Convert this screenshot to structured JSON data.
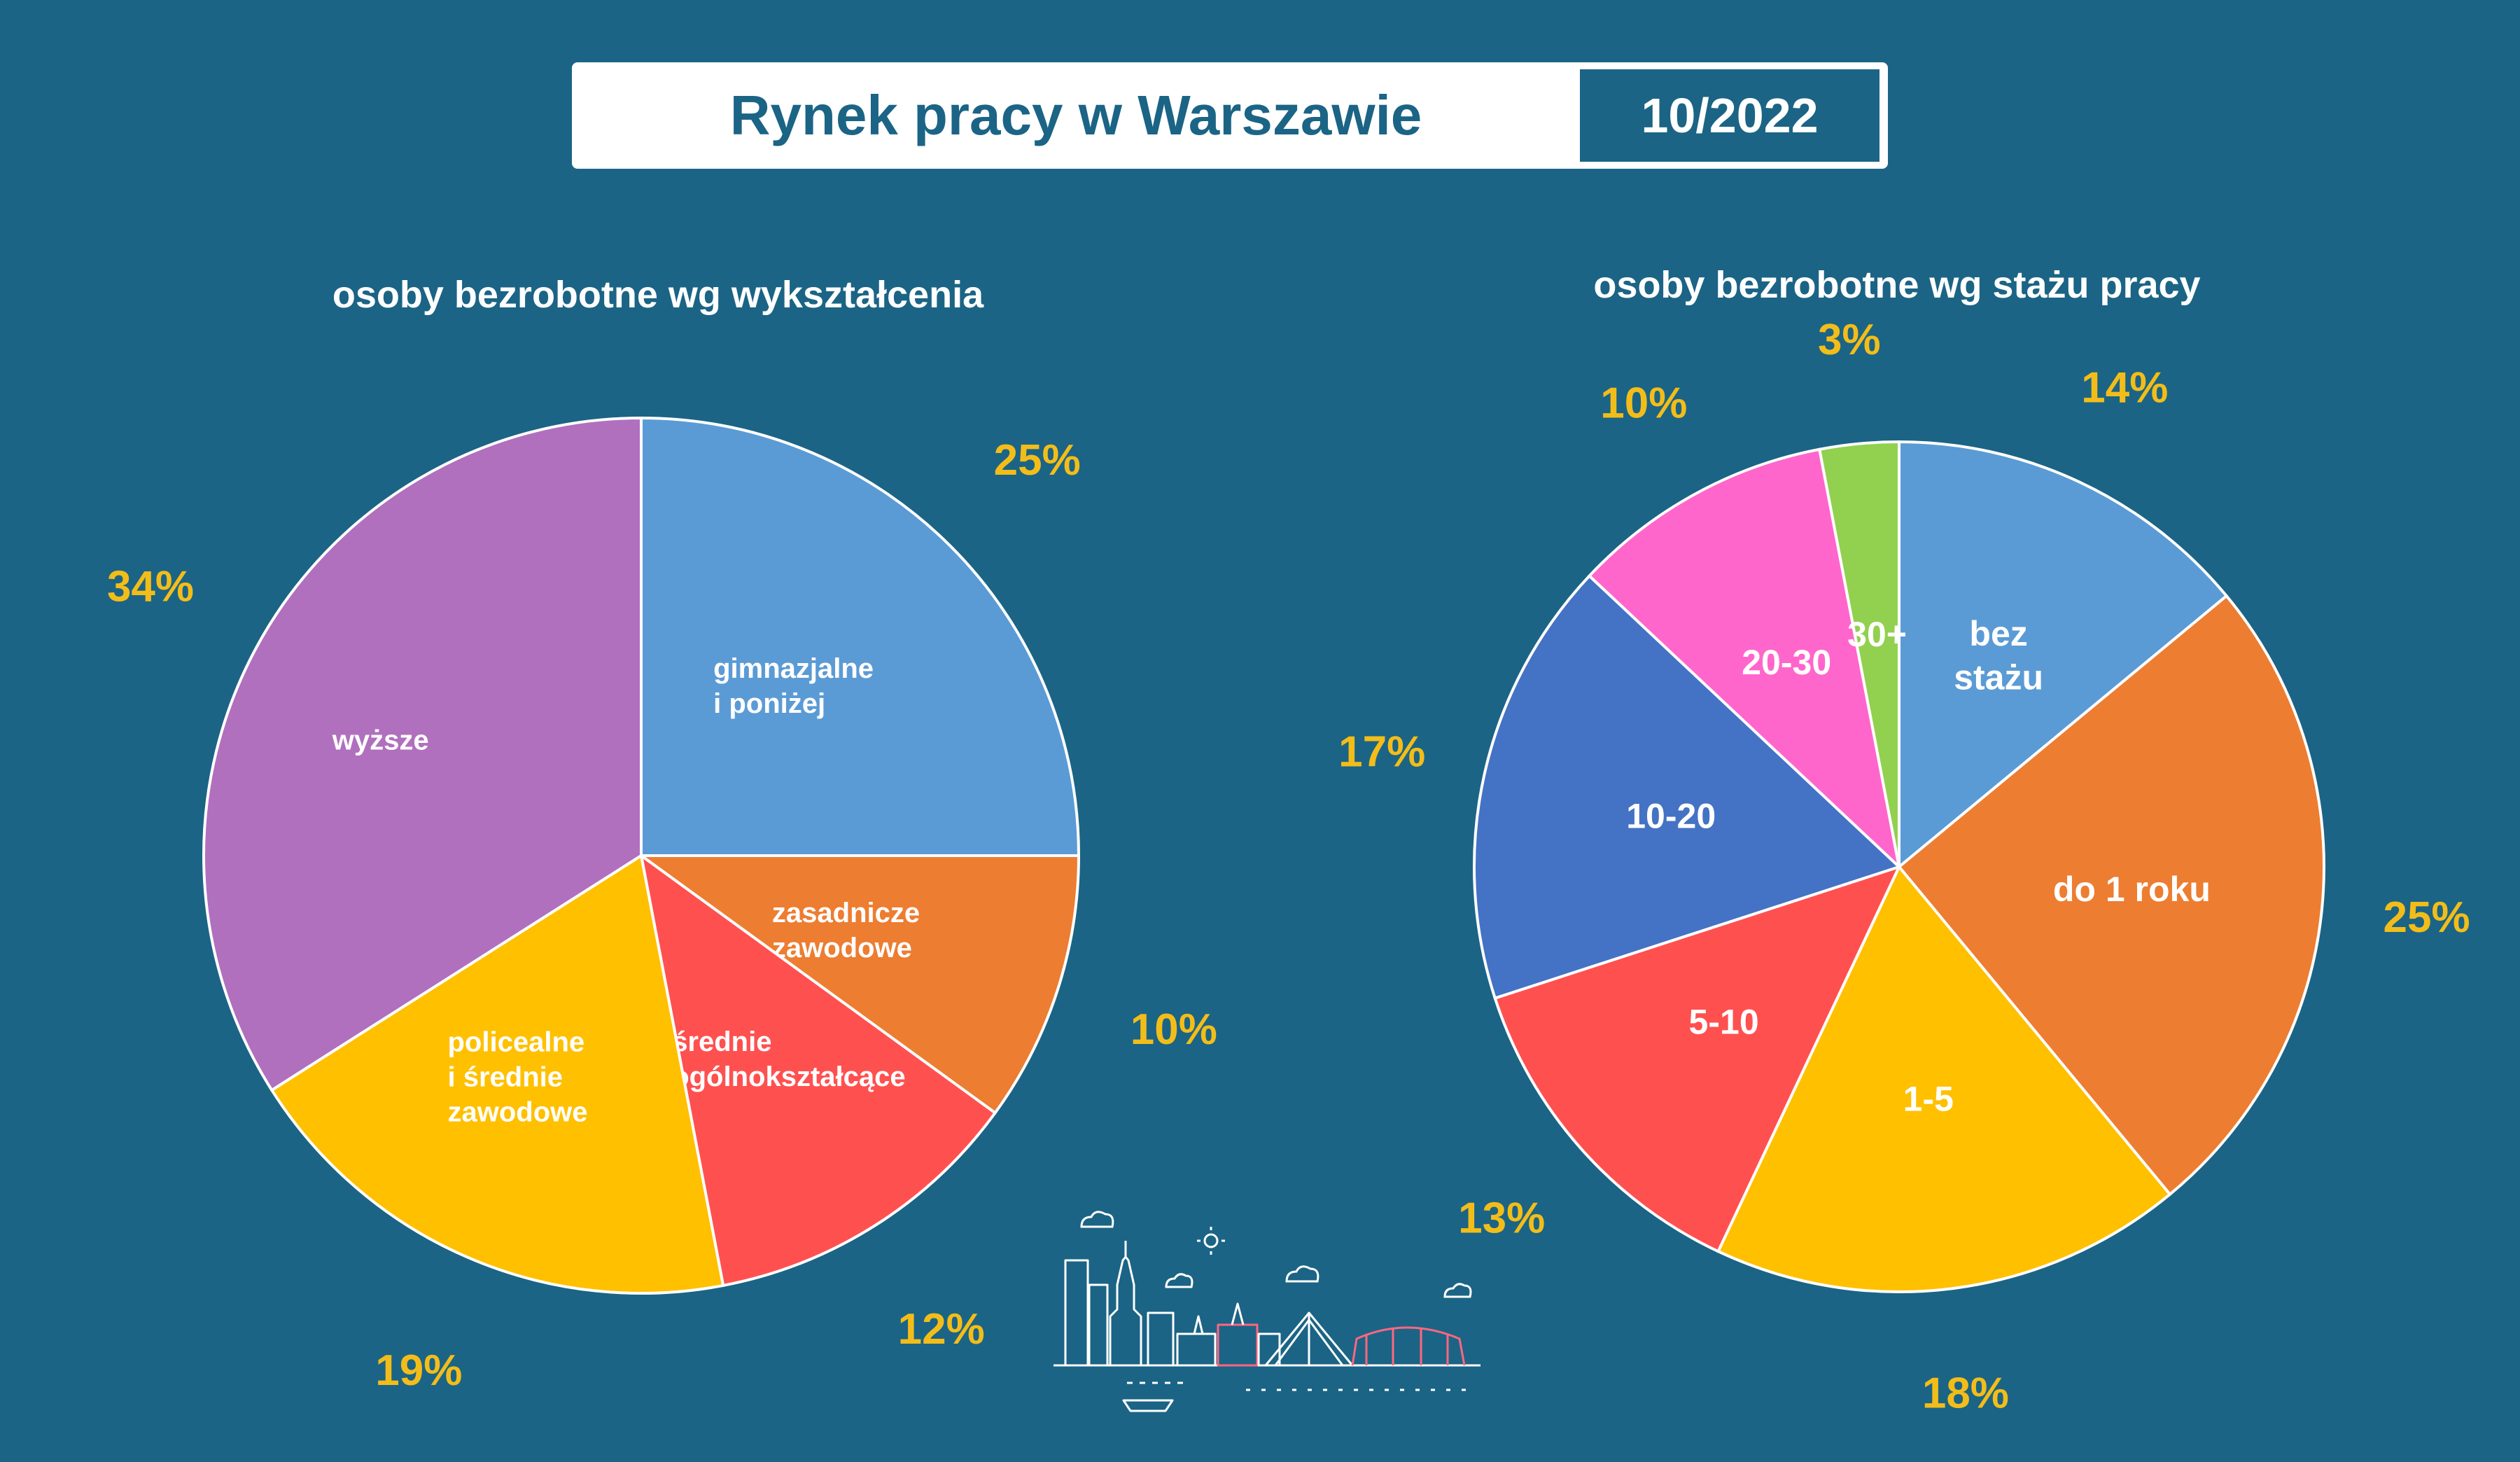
{
  "header": {
    "title": "Rynek pracy w Warszawie",
    "date": "10/2022"
  },
  "colors": {
    "background": "#1b6485",
    "percent_label": "#f3bd19",
    "slice_border": "#ffffff"
  },
  "icons": [
    "warsaw-skyline-icon",
    "sun-icon",
    "cloud-icon"
  ],
  "chart_data": [
    {
      "type": "pie",
      "title": "osoby bezrobotne wg wykształcenia",
      "slices": [
        {
          "label": "gimnazjalne\ni poniżej",
          "value": 25,
          "percent_label": "25%",
          "color": "#5b9bd5"
        },
        {
          "label": "zasadnicze\nzawodowe",
          "value": 10,
          "percent_label": "10%",
          "color": "#ed7d31"
        },
        {
          "label": "średnie\nogólnokształcące",
          "value": 12,
          "percent_label": "12%",
          "color": "#ff5050"
        },
        {
          "label": "policealne\ni średnie\nzawodowe",
          "value": 19,
          "percent_label": "19%",
          "color": "#ffc000"
        },
        {
          "label": "wyższe",
          "value": 34,
          "percent_label": "34%",
          "color": "#b070be"
        }
      ]
    },
    {
      "type": "pie",
      "title": "osoby bezrobotne wg stażu pracy",
      "slices": [
        {
          "label": "bez\nstażu",
          "value": 14,
          "percent_label": "14%",
          "color": "#5b9bd5"
        },
        {
          "label": "do 1 roku",
          "value": 25,
          "percent_label": "25%",
          "color": "#ed7d31"
        },
        {
          "label": "1-5",
          "value": 18,
          "percent_label": "18%",
          "color": "#ffc000"
        },
        {
          "label": "5-10",
          "value": 13,
          "percent_label": "13%",
          "color": "#ff5050"
        },
        {
          "label": "10-20",
          "value": 17,
          "percent_label": "17%",
          "color": "#4472c4"
        },
        {
          "label": "20-30",
          "value": 10,
          "percent_label": "10%",
          "color": "#ff66cc"
        },
        {
          "label": "30+",
          "value": 3,
          "percent_label": "3%",
          "color": "#92d050"
        }
      ]
    }
  ]
}
